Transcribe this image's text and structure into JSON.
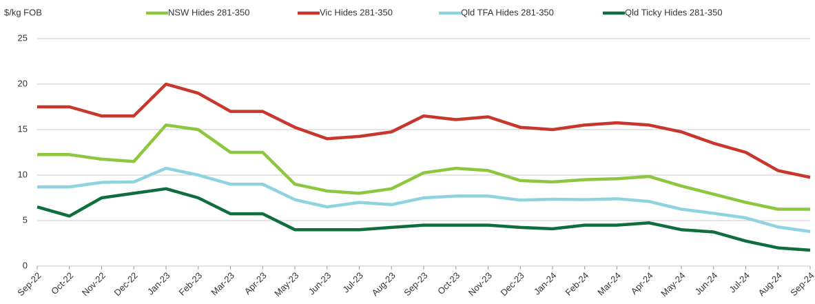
{
  "chart_data": {
    "type": "line",
    "y_label": "$/kg FOB",
    "categories": [
      "Sep-22",
      "Oct-22",
      "Nov-22",
      "Dec-22",
      "Jan-23",
      "Feb-23",
      "Mar-23",
      "Apr-23",
      "May-23",
      "Jun-23",
      "Jul-23",
      "Aug-23",
      "Sep-23",
      "Oct-23",
      "Nov-23",
      "Dec-23",
      "Jan-24",
      "Feb-24",
      "Mar-24",
      "Apr-24",
      "May-24",
      "Jun-24",
      "Jul-24",
      "Aug-24",
      "Sep-24"
    ],
    "series": [
      {
        "name": "NSW Hides 281-350",
        "color": "#8dc63f",
        "values": [
          12.25,
          12.25,
          11.75,
          11.5,
          15.5,
          15,
          12.5,
          12.5,
          9,
          8.25,
          8,
          8.5,
          10.25,
          10.75,
          10.5,
          9.4,
          9.25,
          9.5,
          9.6,
          9.85,
          8.8,
          7.9,
          7,
          6.25,
          6.25
        ]
      },
      {
        "name": "Vic Hides 281-350",
        "color": "#c8372d",
        "values": [
          17.5,
          17.5,
          16.5,
          16.5,
          20,
          19,
          17,
          17,
          15.25,
          14,
          14.25,
          14.75,
          16.5,
          16.1,
          16.4,
          15.25,
          15,
          15.5,
          15.75,
          15.5,
          14.75,
          13.5,
          12.5,
          10.5,
          9.75
        ]
      },
      {
        "name": "Qld TFA Hides 281-350",
        "color": "#8fd3e0",
        "values": [
          8.7,
          8.7,
          9.2,
          9.25,
          10.75,
          10,
          9,
          9,
          7.3,
          6.5,
          7,
          6.75,
          7.5,
          7.7,
          7.7,
          7.25,
          7.35,
          7.3,
          7.4,
          7.1,
          6.25,
          5.8,
          5.3,
          4.3,
          3.8
        ]
      },
      {
        "name": "Qld Ticky Hides 281-350",
        "color": "#0f6e3c",
        "values": [
          6.5,
          5.5,
          7.5,
          8,
          8.5,
          7.5,
          5.75,
          5.75,
          4,
          4,
          4,
          4.25,
          4.5,
          4.5,
          4.5,
          4.25,
          4.1,
          4.5,
          4.5,
          4.75,
          4,
          3.75,
          2.75,
          2,
          1.75
        ]
      }
    ],
    "ylim": [
      0,
      25
    ],
    "yticks": [
      0,
      5,
      10,
      15,
      20,
      25
    ],
    "grid": true,
    "legend": "top"
  }
}
